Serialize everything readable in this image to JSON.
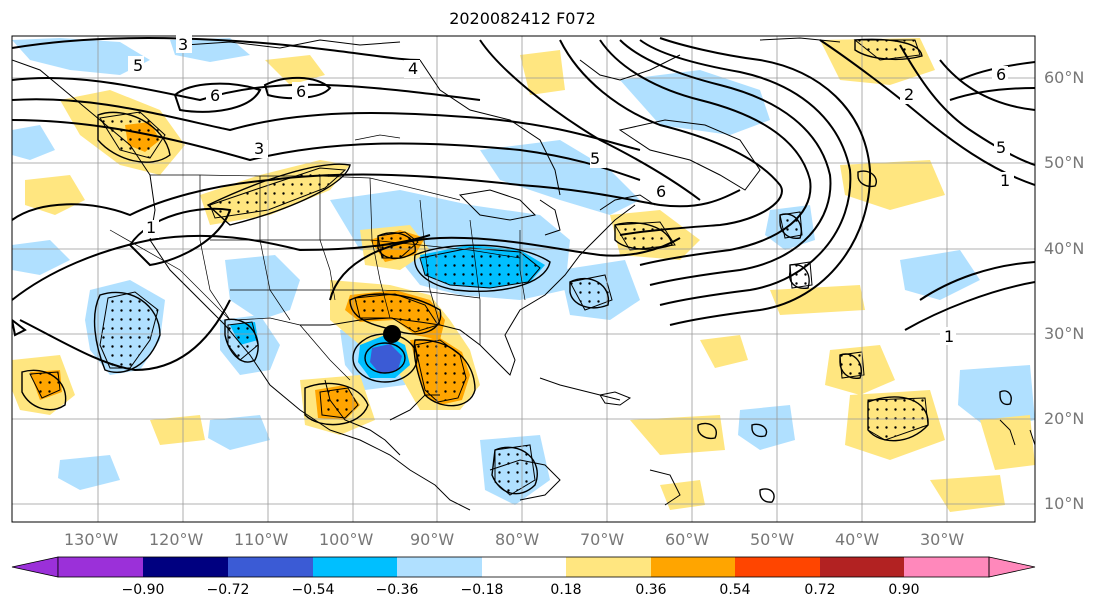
{
  "title": "2020082412 F072",
  "map": {
    "lon_labels": [
      "130°W",
      "120°W",
      "110°W",
      "100°W",
      "90°W",
      "80°W",
      "70°W",
      "60°W",
      "50°W",
      "40°W",
      "30°W"
    ],
    "lat_labels": [
      "60°N",
      "50°N",
      "40°N",
      "30°N",
      "20°N",
      "10°N"
    ],
    "contour_labels": [
      "5",
      "3",
      "6",
      "6",
      "4",
      "2",
      "6",
      "5",
      "3",
      "1",
      "5",
      "6",
      "1",
      "1"
    ],
    "storm_marker": {
      "lon": -94.5,
      "lat": 30.0
    }
  },
  "colorbar": {
    "ticks": [
      "−0.90",
      "−0.72",
      "−0.54",
      "−0.36",
      "−0.18",
      "0.18",
      "0.36",
      "0.54",
      "0.72",
      "0.90"
    ],
    "colors": [
      "#9b30d9",
      "#000080",
      "#3b5bd5",
      "#00bfff",
      "#b0e0ff",
      "#ffffff",
      "#ffe680",
      "#ffa500",
      "#ff4500",
      "#b22222",
      "#ff88bb"
    ]
  }
}
